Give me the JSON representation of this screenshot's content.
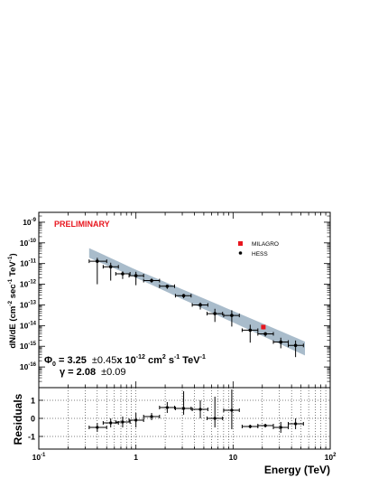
{
  "chart_data": [
    {
      "type": "scatter",
      "preliminary_label": "PRELIMINARY",
      "ylabel_base": "dN/dE (cm",
      "ylabel_mid": " sec",
      "ylabel_end": " TeV",
      "ylabel_close": ")",
      "ylabel_exp1": "-2",
      "ylabel_exp2": "-1",
      "ylabel_exp3": "-1",
      "x_scale": "log",
      "y_scale": "log",
      "xlim": [
        0.1,
        100
      ],
      "ylim": [
        1e-17,
        3e-09
      ],
      "y_tick_labels": [
        {
          "value": 1e-09,
          "base": "10",
          "exp": "-9"
        },
        {
          "value": 1e-10,
          "base": "10",
          "exp": "-10"
        },
        {
          "value": 1e-11,
          "base": "10",
          "exp": "-11"
        },
        {
          "value": 1e-12,
          "base": "10",
          "exp": "-12"
        },
        {
          "value": 1e-13,
          "base": "10",
          "exp": "-13"
        },
        {
          "value": 1e-14,
          "base": "10",
          "exp": "-14"
        },
        {
          "value": 1e-15,
          "base": "10",
          "exp": "-15"
        },
        {
          "value": 1e-16,
          "base": "10",
          "exp": "-16"
        }
      ],
      "legend": [
        {
          "name": "MILAGRO",
          "color": "#e8161e",
          "marker": "square"
        },
        {
          "name": "HESS",
          "color": "#000000",
          "marker": "circle"
        }
      ],
      "fit_band": {
        "x_range": [
          0.33,
          55
        ],
        "y_at_1": 3.25e-12,
        "index": 2.08,
        "color": "#a9bccb"
      },
      "annotation": {
        "phi_symbol": "Φ",
        "phi_sub": "0",
        "phi_text": " = 3.25",
        "phi_err": "±0.45",
        "phi_units": "x 10",
        "phi_units_exp": "-12",
        "phi_units_rest": " cm",
        "phi_units_exp2": "2",
        "phi_units_s": " s",
        "phi_units_exp3": "-1",
        "phi_units_tev": " TeV",
        "phi_units_exp4": "-1",
        "gamma_symbol": "γ",
        "gamma_text": " = 2.08",
        "gamma_err": "±0.09"
      },
      "series": [
        {
          "name": "HESS",
          "color": "#000000",
          "points": [
            {
              "x": 0.4,
              "y": 1.3e-11,
              "xlo": 0.33,
              "xhi": 0.5,
              "ylo": 1e-12,
              "yhi": 1.9e-11
            },
            {
              "x": 0.55,
              "y": 7e-12,
              "xlo": 0.46,
              "xhi": 0.66,
              "ylo": 1.5e-12,
              "yhi": 1.1e-11
            },
            {
              "x": 0.73,
              "y": 3.2e-12,
              "xlo": 0.62,
              "xhi": 0.87,
              "ylo": 1.8e-12,
              "yhi": 4.2e-12
            },
            {
              "x": 1.0,
              "y": 2.6e-12,
              "xlo": 0.85,
              "xhi": 1.2,
              "ylo": 9e-13,
              "yhi": 4e-12
            },
            {
              "x": 1.45,
              "y": 1.5e-12,
              "xlo": 1.2,
              "xhi": 1.75,
              "ylo": 1.2e-12,
              "yhi": 1.9e-12
            },
            {
              "x": 2.1,
              "y": 8e-13,
              "xlo": 1.75,
              "xhi": 2.5,
              "ylo": 6e-13,
              "yhi": 9.5e-13
            },
            {
              "x": 3.1,
              "y": 2.8e-13,
              "xlo": 2.55,
              "xhi": 3.7,
              "ylo": 2.1e-13,
              "yhi": 3.4e-13
            },
            {
              "x": 4.6,
              "y": 1e-13,
              "xlo": 3.8,
              "xhi": 5.5,
              "ylo": 6e-14,
              "yhi": 1.3e-13
            },
            {
              "x": 6.5,
              "y": 3.8e-14,
              "xlo": 5.4,
              "xhi": 7.8,
              "ylo": 1.5e-14,
              "yhi": 6.5e-14
            },
            {
              "x": 9.7,
              "y": 3.1e-14,
              "xlo": 8.0,
              "xhi": 11.6,
              "ylo": 9e-15,
              "yhi": 5.5e-14
            },
            {
              "x": 15,
              "y": 6e-15,
              "xlo": 12.4,
              "xhi": 18,
              "ylo": 1.5e-15,
              "yhi": 1.1e-14
            },
            {
              "x": 21.5,
              "y": 4e-15,
              "xlo": 18,
              "xhi": 26,
              "ylo": 3e-15,
              "yhi": 4.8e-15
            },
            {
              "x": 31,
              "y": 1.6e-15,
              "xlo": 26,
              "xhi": 37,
              "ylo": 8e-16,
              "yhi": 2.6e-15
            },
            {
              "x": 44,
              "y": 1.1e-15,
              "xlo": 37,
              "xhi": 53,
              "ylo": 3e-16,
              "yhi": 1.9e-15
            }
          ]
        },
        {
          "name": "MILAGRO",
          "color": "#e8161e",
          "points": [
            {
              "x": 20.5,
              "y": 8.5e-15,
              "ylo": 6.5e-15,
              "yhi": 1.05e-14
            }
          ]
        }
      ]
    },
    {
      "type": "scatter",
      "ylabel": "Residuals",
      "xlabel": "Energy (TeV)",
      "x_scale": "log",
      "xlim": [
        0.1,
        100
      ],
      "ylim": [
        -1.7,
        1.7
      ],
      "y_ticks": [
        -1,
        0,
        1
      ],
      "y_tick_labels": [
        "-1",
        "0",
        "1"
      ],
      "x_tick_labels": [
        {
          "value": 0.1,
          "base": "10",
          "exp": "-1"
        },
        {
          "value": 1,
          "base": "1",
          "exp": ""
        },
        {
          "value": 10,
          "base": "10",
          "exp": ""
        },
        {
          "value": 100,
          "base": "10",
          "exp": "2"
        }
      ],
      "grid": true,
      "series": [
        {
          "name": "HESS",
          "points": [
            {
              "x": 0.4,
              "y": -0.5,
              "xlo": 0.33,
              "xhi": 0.5,
              "ylo": -0.75,
              "yhi": -0.25
            },
            {
              "x": 0.55,
              "y": -0.25,
              "xlo": 0.46,
              "xhi": 0.66,
              "ylo": -0.5,
              "yhi": 0.0
            },
            {
              "x": 0.73,
              "y": -0.2,
              "xlo": 0.62,
              "xhi": 0.87,
              "ylo": -0.5,
              "yhi": 0.1
            },
            {
              "x": 1.0,
              "y": -0.1,
              "xlo": 0.85,
              "xhi": 1.2,
              "ylo": -0.5,
              "yhi": 0.3
            },
            {
              "x": 1.45,
              "y": 0.1,
              "xlo": 1.2,
              "xhi": 1.75,
              "ylo": -0.1,
              "yhi": 0.3
            },
            {
              "x": 2.1,
              "y": 0.6,
              "xlo": 1.75,
              "xhi": 2.5,
              "ylo": 0.3,
              "yhi": 0.9
            },
            {
              "x": 3.1,
              "y": 0.55,
              "xlo": 2.55,
              "xhi": 3.7,
              "ylo": 0.2,
              "yhi": 1.5
            },
            {
              "x": 4.6,
              "y": 0.5,
              "xlo": 3.8,
              "xhi": 5.5,
              "ylo": 0.0,
              "yhi": 1.0
            },
            {
              "x": 6.5,
              "y": 0.0,
              "xlo": 5.4,
              "xhi": 7.8,
              "ylo": -0.5,
              "yhi": 1.2
            },
            {
              "x": 9.7,
              "y": 0.45,
              "xlo": 8.0,
              "xhi": 11.6,
              "ylo": -0.6,
              "yhi": 1.6
            },
            {
              "x": 15,
              "y": -0.45,
              "xlo": 12.4,
              "xhi": 18,
              "ylo": -0.55,
              "yhi": -0.35
            },
            {
              "x": 21.5,
              "y": -0.4,
              "xlo": 18,
              "xhi": 26,
              "ylo": -0.5,
              "yhi": -0.3
            },
            {
              "x": 31,
              "y": -0.5,
              "xlo": 26,
              "xhi": 37,
              "ylo": -0.8,
              "yhi": -0.2
            },
            {
              "x": 44,
              "y": -0.3,
              "xlo": 37,
              "xhi": 53,
              "ylo": -0.6,
              "yhi": 0.0
            }
          ]
        }
      ]
    }
  ]
}
